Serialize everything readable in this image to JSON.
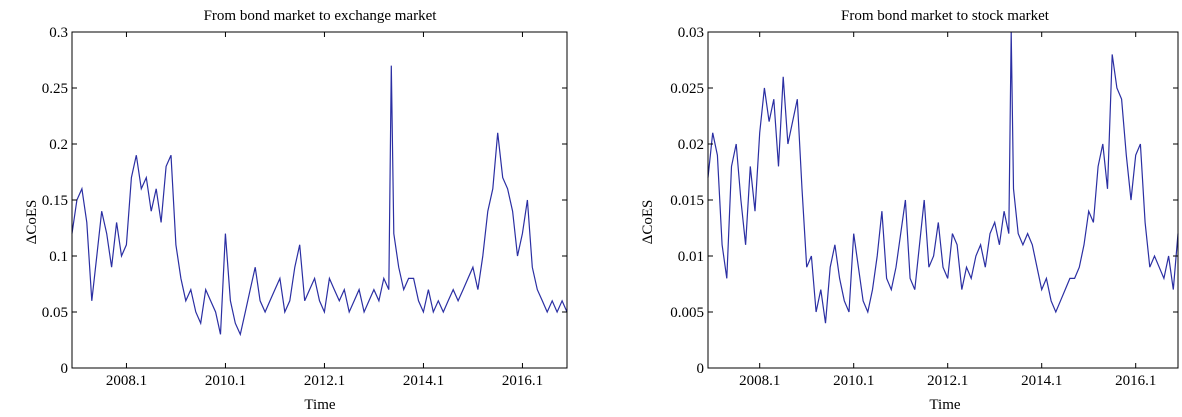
{
  "colors": {
    "series": "#2b2fa3",
    "axes": "#000000",
    "background": "#ffffff"
  },
  "chart_data": [
    {
      "type": "line",
      "title": "From bond market to exchange market",
      "xlabel": "Time",
      "ylabel": "ΔCoES",
      "xlim": [
        2007.0,
        2017.0
      ],
      "ylim": [
        0,
        0.3
      ],
      "xticks": [
        2008.1,
        2010.1,
        2012.1,
        2014.1,
        2016.1
      ],
      "xtick_labels": [
        "2008.1",
        "2010.1",
        "2012.1",
        "2014.1",
        "2016.1"
      ],
      "yticks": [
        0,
        0.05,
        0.1,
        0.15,
        0.2,
        0.25,
        0.3
      ],
      "ytick_labels": [
        "0",
        "0.05",
        "0.1",
        "0.15",
        "0.2",
        "0.25",
        "0.3"
      ],
      "grid": false,
      "series": [
        {
          "x": [
            2007.0,
            2007.1,
            2007.2,
            2007.3,
            2007.4,
            2007.5,
            2007.6,
            2007.7,
            2007.8,
            2007.9,
            2008.0,
            2008.1,
            2008.2,
            2008.3,
            2008.4,
            2008.5,
            2008.6,
            2008.7,
            2008.8,
            2008.9,
            2009.0,
            2009.1,
            2009.2,
            2009.3,
            2009.4,
            2009.5,
            2009.6,
            2009.7,
            2009.8,
            2009.9,
            2010.0,
            2010.1,
            2010.2,
            2010.3,
            2010.4,
            2010.5,
            2010.6,
            2010.7,
            2010.8,
            2010.9,
            2011.0,
            2011.1,
            2011.2,
            2011.3,
            2011.4,
            2011.5,
            2011.6,
            2011.7,
            2011.8,
            2011.9,
            2012.0,
            2012.1,
            2012.2,
            2012.3,
            2012.4,
            2012.5,
            2012.6,
            2012.7,
            2012.8,
            2012.9,
            2013.0,
            2013.1,
            2013.2,
            2013.3,
            2013.4,
            2013.45,
            2013.5,
            2013.6,
            2013.7,
            2013.8,
            2013.9,
            2014.0,
            2014.1,
            2014.2,
            2014.3,
            2014.4,
            2014.5,
            2014.6,
            2014.7,
            2014.8,
            2014.9,
            2015.0,
            2015.1,
            2015.2,
            2015.3,
            2015.4,
            2015.5,
            2015.6,
            2015.7,
            2015.8,
            2015.9,
            2016.0,
            2016.1,
            2016.2,
            2016.3,
            2016.4,
            2016.5,
            2016.6,
            2016.7,
            2016.8,
            2016.9,
            2017.0
          ],
          "y": [
            0.12,
            0.15,
            0.16,
            0.13,
            0.06,
            0.1,
            0.14,
            0.12,
            0.09,
            0.13,
            0.1,
            0.11,
            0.17,
            0.19,
            0.16,
            0.17,
            0.14,
            0.16,
            0.13,
            0.18,
            0.19,
            0.11,
            0.08,
            0.06,
            0.07,
            0.05,
            0.04,
            0.07,
            0.06,
            0.05,
            0.03,
            0.12,
            0.06,
            0.04,
            0.03,
            0.05,
            0.07,
            0.09,
            0.06,
            0.05,
            0.06,
            0.07,
            0.08,
            0.05,
            0.06,
            0.09,
            0.11,
            0.06,
            0.07,
            0.08,
            0.06,
            0.05,
            0.08,
            0.07,
            0.06,
            0.07,
            0.05,
            0.06,
            0.07,
            0.05,
            0.06,
            0.07,
            0.06,
            0.08,
            0.07,
            0.27,
            0.12,
            0.09,
            0.07,
            0.08,
            0.08,
            0.06,
            0.05,
            0.07,
            0.05,
            0.06,
            0.05,
            0.06,
            0.07,
            0.06,
            0.07,
            0.08,
            0.09,
            0.07,
            0.1,
            0.14,
            0.16,
            0.21,
            0.17,
            0.16,
            0.14,
            0.1,
            0.12,
            0.15,
            0.09,
            0.07,
            0.06,
            0.05,
            0.06,
            0.05,
            0.06,
            0.05
          ]
        }
      ]
    },
    {
      "type": "line",
      "title": "From bond market to stock market",
      "xlabel": "Time",
      "ylabel": "ΔCoES",
      "xlim": [
        2007.0,
        2017.0
      ],
      "ylim": [
        0,
        0.03
      ],
      "xticks": [
        2008.1,
        2010.1,
        2012.1,
        2014.1,
        2016.1
      ],
      "xtick_labels": [
        "2008.1",
        "2010.1",
        "2012.1",
        "2014.1",
        "2016.1"
      ],
      "yticks": [
        0,
        0.005,
        0.01,
        0.015,
        0.02,
        0.025,
        0.03
      ],
      "ytick_labels": [
        "0",
        "0.005",
        "0.01",
        "0.015",
        "0.02",
        "0.025",
        "0.03"
      ],
      "grid": false,
      "series": [
        {
          "x": [
            2007.0,
            2007.1,
            2007.2,
            2007.3,
            2007.4,
            2007.5,
            2007.6,
            2007.7,
            2007.8,
            2007.9,
            2008.0,
            2008.1,
            2008.2,
            2008.3,
            2008.4,
            2008.5,
            2008.6,
            2008.7,
            2008.8,
            2008.9,
            2009.0,
            2009.1,
            2009.2,
            2009.3,
            2009.4,
            2009.5,
            2009.6,
            2009.7,
            2009.8,
            2009.9,
            2010.0,
            2010.1,
            2010.2,
            2010.3,
            2010.4,
            2010.5,
            2010.6,
            2010.7,
            2010.8,
            2010.9,
            2011.0,
            2011.1,
            2011.2,
            2011.3,
            2011.4,
            2011.5,
            2011.6,
            2011.7,
            2011.8,
            2011.9,
            2012.0,
            2012.1,
            2012.2,
            2012.3,
            2012.4,
            2012.5,
            2012.6,
            2012.7,
            2012.8,
            2012.9,
            2013.0,
            2013.1,
            2013.2,
            2013.3,
            2013.4,
            2013.45,
            2013.5,
            2013.6,
            2013.7,
            2013.8,
            2013.9,
            2014.0,
            2014.1,
            2014.2,
            2014.3,
            2014.4,
            2014.5,
            2014.6,
            2014.7,
            2014.8,
            2014.9,
            2015.0,
            2015.1,
            2015.2,
            2015.3,
            2015.4,
            2015.5,
            2015.6,
            2015.7,
            2015.8,
            2015.9,
            2016.0,
            2016.1,
            2016.2,
            2016.3,
            2016.4,
            2016.5,
            2016.6,
            2016.7,
            2016.8,
            2016.9,
            2017.0
          ],
          "y": [
            0.017,
            0.021,
            0.019,
            0.011,
            0.008,
            0.018,
            0.02,
            0.015,
            0.011,
            0.018,
            0.014,
            0.021,
            0.025,
            0.022,
            0.024,
            0.018,
            0.026,
            0.02,
            0.022,
            0.024,
            0.016,
            0.009,
            0.01,
            0.005,
            0.007,
            0.004,
            0.009,
            0.011,
            0.008,
            0.006,
            0.005,
            0.012,
            0.009,
            0.006,
            0.005,
            0.007,
            0.01,
            0.014,
            0.008,
            0.007,
            0.009,
            0.012,
            0.015,
            0.008,
            0.007,
            0.011,
            0.015,
            0.009,
            0.01,
            0.013,
            0.009,
            0.008,
            0.012,
            0.011,
            0.007,
            0.009,
            0.008,
            0.01,
            0.011,
            0.009,
            0.012,
            0.013,
            0.011,
            0.014,
            0.012,
            0.03,
            0.016,
            0.012,
            0.011,
            0.012,
            0.011,
            0.009,
            0.007,
            0.008,
            0.006,
            0.005,
            0.006,
            0.007,
            0.008,
            0.008,
            0.009,
            0.011,
            0.014,
            0.013,
            0.018,
            0.02,
            0.016,
            0.028,
            0.025,
            0.024,
            0.019,
            0.015,
            0.019,
            0.02,
            0.013,
            0.009,
            0.01,
            0.009,
            0.008,
            0.01,
            0.007,
            0.012
          ]
        }
      ]
    }
  ]
}
